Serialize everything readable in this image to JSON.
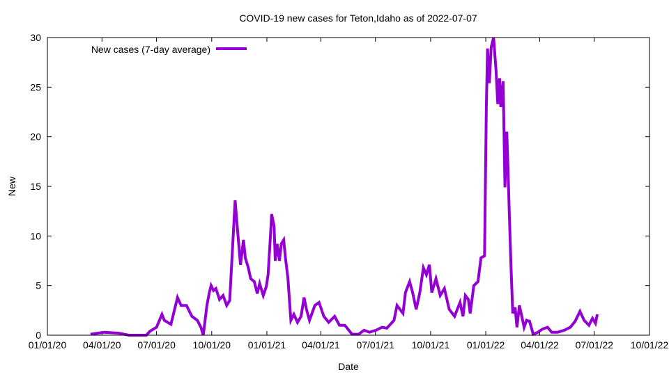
{
  "chart_data": {
    "type": "line",
    "title": "COVID-19 new cases for Teton,Idaho as of 2022-07-07",
    "xlabel": "Date",
    "ylabel": "New",
    "x_origin_date": "2020-01-01",
    "x_unit": "days since 2020-01-01",
    "xlim": [
      0,
      1004
    ],
    "ylim": [
      0,
      30
    ],
    "grid": false,
    "legend_position": "top-left",
    "x_ticks": [
      {
        "day": 0,
        "label": "01/01/20"
      },
      {
        "day": 91,
        "label": "04/01/20"
      },
      {
        "day": 182,
        "label": "07/01/20"
      },
      {
        "day": 274,
        "label": "10/01/20"
      },
      {
        "day": 366,
        "label": "01/01/21"
      },
      {
        "day": 456,
        "label": "04/01/21"
      },
      {
        "day": 547,
        "label": "07/01/21"
      },
      {
        "day": 639,
        "label": "10/01/21"
      },
      {
        "day": 731,
        "label": "01/01/22"
      },
      {
        "day": 821,
        "label": "04/01/22"
      },
      {
        "day": 912,
        "label": "07/01/22"
      },
      {
        "day": 1004,
        "label": "10/01/22"
      }
    ],
    "y_ticks": [
      {
        "value": 0,
        "label": "0"
      },
      {
        "value": 5,
        "label": "5"
      },
      {
        "value": 10,
        "label": "10"
      },
      {
        "value": 15,
        "label": "15"
      },
      {
        "value": 20,
        "label": "20"
      },
      {
        "value": 25,
        "label": "25"
      },
      {
        "value": 30,
        "label": "30"
      }
    ],
    "series": [
      {
        "name": "New cases (7-day average)",
        "color": "#9400d3",
        "points": [
          [
            72,
            0.1
          ],
          [
            95,
            0.3
          ],
          [
            119,
            0.2
          ],
          [
            136,
            0
          ],
          [
            165,
            0
          ],
          [
            171,
            0.4
          ],
          [
            182,
            0.8
          ],
          [
            191,
            2.1
          ],
          [
            195,
            1.5
          ],
          [
            206,
            1.1
          ],
          [
            217,
            3.8
          ],
          [
            223,
            3.0
          ],
          [
            232,
            3.0
          ],
          [
            241,
            1.9
          ],
          [
            250,
            1.5
          ],
          [
            256,
            0.8
          ],
          [
            260,
            0
          ],
          [
            266,
            3.0
          ],
          [
            270,
            4.3
          ],
          [
            273,
            5.0
          ],
          [
            277,
            4.5
          ],
          [
            281,
            4.7
          ],
          [
            287,
            3.6
          ],
          [
            293,
            4.0
          ],
          [
            299,
            3.0
          ],
          [
            304,
            3.5
          ],
          [
            313,
            13.6
          ],
          [
            316,
            11.4
          ],
          [
            322,
            7.1
          ],
          [
            327,
            9.6
          ],
          [
            330,
            7.8
          ],
          [
            335,
            6.8
          ],
          [
            339,
            5.7
          ],
          [
            345,
            5.4
          ],
          [
            350,
            4.2
          ],
          [
            354,
            5.2
          ],
          [
            360,
            4.0
          ],
          [
            365,
            4.9
          ],
          [
            368,
            6.1
          ],
          [
            372,
            10.0
          ],
          [
            374,
            12.2
          ],
          [
            378,
            11.0
          ],
          [
            380,
            7.5
          ],
          [
            383,
            9.2
          ],
          [
            387,
            7.5
          ],
          [
            390,
            9.2
          ],
          [
            394,
            9.6
          ],
          [
            397,
            7.8
          ],
          [
            401,
            5.8
          ],
          [
            406,
            1.5
          ],
          [
            411,
            2.1
          ],
          [
            417,
            1.3
          ],
          [
            423,
            1.9
          ],
          [
            428,
            3.8
          ],
          [
            432,
            2.6
          ],
          [
            437,
            1.5
          ],
          [
            446,
            3.0
          ],
          [
            453,
            3.3
          ],
          [
            461,
            1.9
          ],
          [
            469,
            1.3
          ],
          [
            479,
            1.9
          ],
          [
            487,
            1.0
          ],
          [
            496,
            1.0
          ],
          [
            508,
            0.1
          ],
          [
            519,
            0.1
          ],
          [
            528,
            0.5
          ],
          [
            537,
            0.3
          ],
          [
            548,
            0.5
          ],
          [
            558,
            0.8
          ],
          [
            566,
            0.7
          ],
          [
            578,
            1.5
          ],
          [
            583,
            3.0
          ],
          [
            593,
            2.2
          ],
          [
            597,
            4.3
          ],
          [
            604,
            5.4
          ],
          [
            609,
            4.3
          ],
          [
            615,
            2.6
          ],
          [
            621,
            4.3
          ],
          [
            627,
            6.8
          ],
          [
            632,
            6.1
          ],
          [
            637,
            7.1
          ],
          [
            641,
            4.3
          ],
          [
            648,
            5.7
          ],
          [
            655,
            4.0
          ],
          [
            662,
            4.7
          ],
          [
            670,
            2.6
          ],
          [
            679,
            1.9
          ],
          [
            688,
            3.3
          ],
          [
            693,
            1.9
          ],
          [
            697,
            4.0
          ],
          [
            702,
            3.6
          ],
          [
            705,
            2.2
          ],
          [
            711,
            5.0
          ],
          [
            718,
            5.4
          ],
          [
            723,
            7.8
          ],
          [
            729,
            8.0
          ],
          [
            732,
            23.0
          ],
          [
            734,
            28.9
          ],
          [
            737,
            25.4
          ],
          [
            740,
            29.0
          ],
          [
            744,
            30.0
          ],
          [
            748,
            26.8
          ],
          [
            751,
            23.3
          ],
          [
            754,
            25.9
          ],
          [
            756,
            23.0
          ],
          [
            760,
            25.6
          ],
          [
            763,
            14.9
          ],
          [
            766,
            20.5
          ],
          [
            768,
            17.0
          ],
          [
            770,
            12.8
          ],
          [
            773,
            7.1
          ],
          [
            776,
            2.2
          ],
          [
            780,
            2.8
          ],
          [
            783,
            0.8
          ],
          [
            787,
            3.0
          ],
          [
            790,
            2.2
          ],
          [
            795,
            0.8
          ],
          [
            799,
            1.5
          ],
          [
            804,
            1.4
          ],
          [
            810,
            0.1
          ],
          [
            818,
            0.3
          ],
          [
            825,
            0.6
          ],
          [
            834,
            0.8
          ],
          [
            841,
            0.3
          ],
          [
            851,
            0.3
          ],
          [
            862,
            0.5
          ],
          [
            872,
            0.8
          ],
          [
            880,
            1.4
          ],
          [
            888,
            2.4
          ],
          [
            895,
            1.5
          ],
          [
            903,
            1.0
          ],
          [
            909,
            1.7
          ],
          [
            914,
            1.2
          ],
          [
            917,
            2.1
          ]
        ]
      }
    ]
  }
}
